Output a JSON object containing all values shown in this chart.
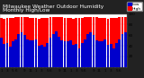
{
  "title": "Milwaukee Weather Outdoor Humidity",
  "subtitle": "Monthly High/Low",
  "high_color": "#ff0000",
  "low_color": "#0000cc",
  "header_bg": "#222222",
  "header_text_color": "#ffffff",
  "plot_bg": "#ffffff",
  "grid_color": "#cccccc",
  "ylim": [
    0,
    100
  ],
  "highs": [
    93,
    91,
    93,
    93,
    93,
    95,
    95,
    95,
    95,
    95,
    93,
    93,
    93,
    91,
    93,
    93,
    93,
    95,
    95,
    95,
    95,
    95,
    93,
    93,
    93,
    91,
    93,
    93,
    93,
    95,
    95,
    95,
    95,
    95,
    93,
    93,
    93,
    91,
    93,
    93,
    93,
    95,
    95,
    95
  ],
  "lows": [
    55,
    43,
    45,
    38,
    48,
    52,
    62,
    65,
    60,
    52,
    50,
    50,
    52,
    40,
    42,
    38,
    46,
    55,
    62,
    68,
    58,
    50,
    48,
    48,
    50,
    42,
    44,
    36,
    46,
    52,
    62,
    66,
    60,
    50,
    48,
    48,
    52,
    42,
    44,
    36,
    46,
    52,
    62,
    65
  ],
  "xlabels": [
    "1",
    "",
    "3",
    "",
    "5",
    "6",
    "",
    "",
    "9",
    "",
    "11",
    "",
    "1",
    "",
    "3",
    "",
    "5",
    "6",
    "",
    "",
    "9",
    "",
    "11",
    "",
    "1",
    "",
    "3",
    "",
    "5",
    "6",
    "",
    "",
    "9",
    "",
    "11",
    "",
    "1",
    "",
    "3",
    "",
    "5",
    "6",
    "",
    ""
  ],
  "bar_width": 0.85,
  "tick_fontsize": 3.0,
  "title_fontsize": 4.2,
  "legend_fontsize": 3.2,
  "yticks": [
    20,
    40,
    60,
    80,
    100
  ]
}
